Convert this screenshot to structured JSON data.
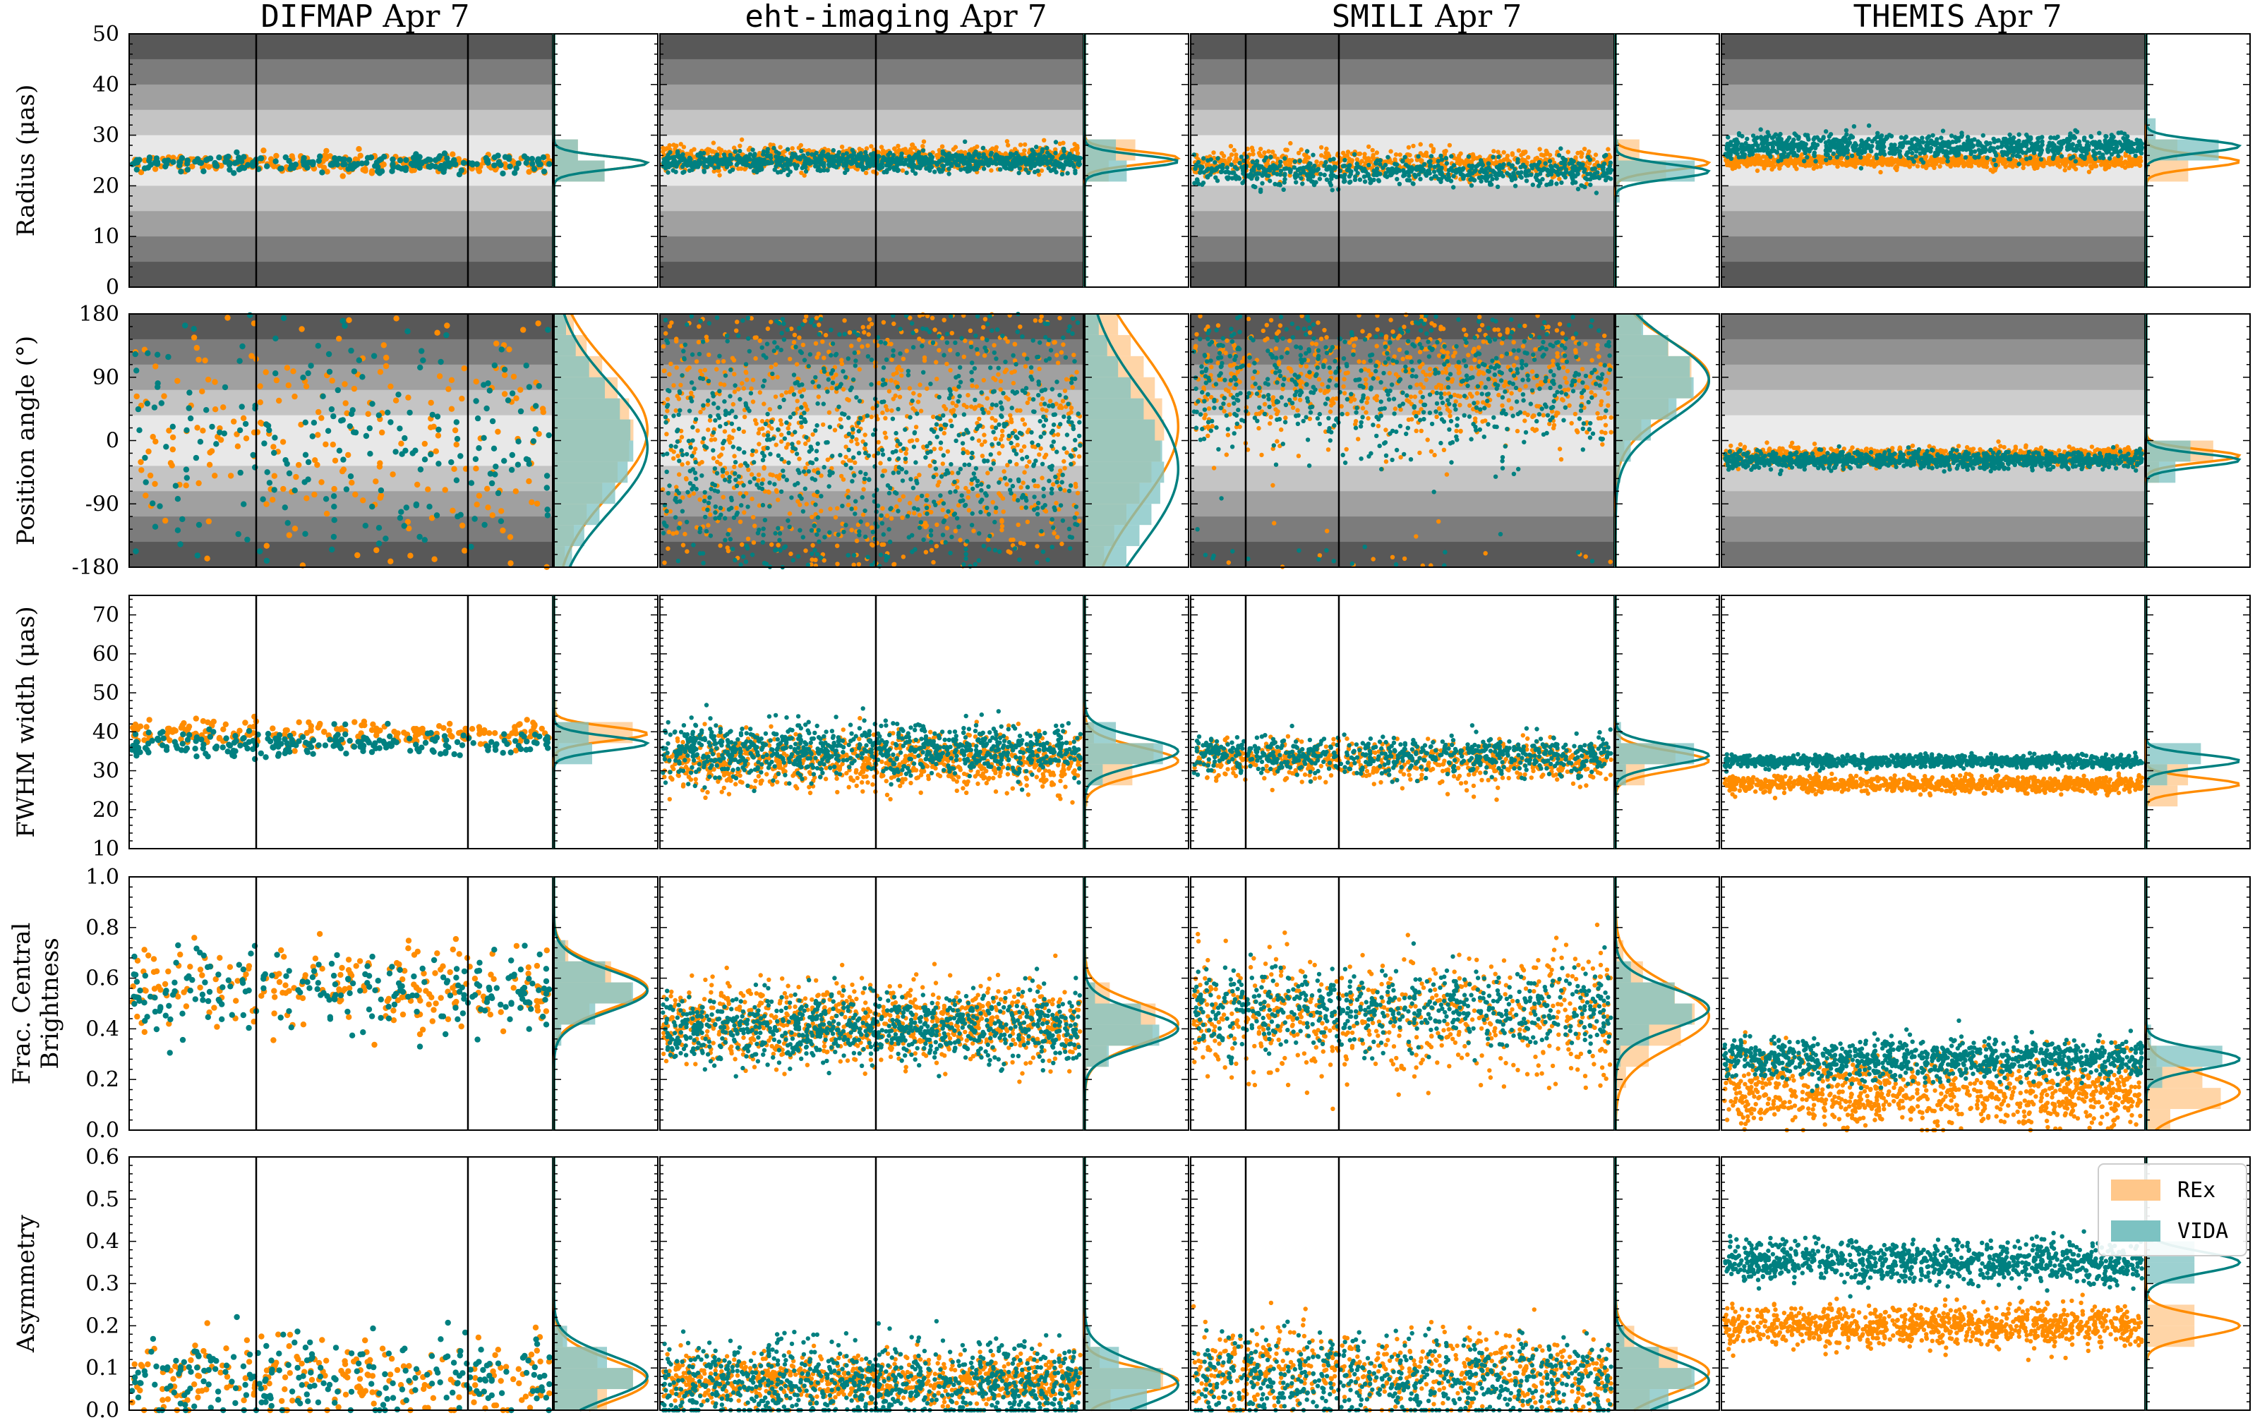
{
  "chart_data": {
    "type": "scatter",
    "layout": "grid of 5 rows x 4 columns; each cell = scatter (time-ordered) + marginal histogram with KDE",
    "columns": [
      {
        "method": "DIFMAP",
        "date": "Apr 7",
        "dividers": [
          0.3,
          0.8
        ]
      },
      {
        "method": "eht-imaging",
        "date": "Apr 7",
        "dividers": [
          0.51
        ]
      },
      {
        "method": "SMILI",
        "date": "Apr 7",
        "dividers": [
          0.13,
          0.35
        ]
      },
      {
        "method": "THEMIS",
        "date": "Apr 7",
        "dividers": []
      }
    ],
    "rows": [
      {
        "key": "radius",
        "ylabel": "Radius (μas)",
        "ylim": [
          0,
          50
        ],
        "yticks": [
          0,
          10,
          20,
          30,
          40,
          50
        ],
        "grayscale_background": true,
        "means": {
          "REx": [
            24.5,
            25.5,
            24.5,
            24.8
          ],
          "VIDA": [
            24.5,
            24.8,
            22.8,
            27.8
          ]
        },
        "spreads": {
          "REx": [
            1.0,
            1.2,
            1.4,
            0.6
          ],
          "VIDA": [
            0.8,
            1.0,
            1.4,
            1.2
          ]
        }
      },
      {
        "key": "pa",
        "ylabel": "Position angle (°)",
        "ylim": [
          -180,
          180
        ],
        "yticks": [
          -180,
          -90,
          0,
          90,
          180
        ],
        "grayscale_background": true,
        "means": {
          "REx": [
            15,
            20,
            90,
            -22
          ],
          "VIDA": [
            -10,
            -40,
            85,
            -28
          ]
        },
        "spreads": {
          "REx": [
            90,
            110,
            50,
            6
          ],
          "VIDA": [
            90,
            110,
            55,
            6
          ]
        }
      },
      {
        "key": "fwhm",
        "ylabel": "FWHM width (μas)",
        "ylim": [
          10,
          75
        ],
        "yticks": [
          10,
          20,
          30,
          40,
          50,
          60,
          70
        ],
        "grayscale_background": false,
        "means": {
          "REx": [
            39.5,
            32.5,
            32.5,
            26.5
          ],
          "VIDA": [
            37,
            35,
            34,
            32.5
          ]
        },
        "spreads": {
          "REx": [
            1.8,
            3.5,
            2.5,
            1.0
          ],
          "VIDA": [
            1.8,
            3.5,
            2.5,
            0.8
          ]
        }
      },
      {
        "key": "fcb",
        "ylabel": "Frac. Central Brightness",
        "ylim": [
          0,
          1.0
        ],
        "yticks": [
          0.0,
          0.2,
          0.4,
          0.6,
          0.8,
          1.0
        ],
        "grayscale_background": false,
        "means": {
          "REx": [
            0.56,
            0.42,
            0.45,
            0.15
          ],
          "VIDA": [
            0.55,
            0.4,
            0.48,
            0.28
          ]
        },
        "spreads": {
          "REx": [
            0.08,
            0.08,
            0.12,
            0.07
          ],
          "VIDA": [
            0.08,
            0.07,
            0.08,
            0.04
          ]
        }
      },
      {
        "key": "asym",
        "ylabel": "Asymmetry",
        "ylim": [
          0,
          0.6
        ],
        "yticks": [
          0.0,
          0.1,
          0.2,
          0.3,
          0.4,
          0.5,
          0.6
        ],
        "grayscale_background": false,
        "means": {
          "REx": [
            0.07,
            0.07,
            0.09,
            0.2
          ],
          "VIDA": [
            0.08,
            0.06,
            0.07,
            0.35
          ]
        },
        "spreads": {
          "REx": [
            0.05,
            0.03,
            0.05,
            0.025
          ],
          "VIDA": [
            0.05,
            0.05,
            0.05,
            0.025
          ]
        }
      }
    ],
    "points_per_panel": [
      220,
      900,
      650,
      950
    ],
    "series": [
      {
        "name": "REx",
        "color": "#ff8c00",
        "hist_color": "#ffc78a"
      },
      {
        "name": "VIDA",
        "color": "#008080",
        "hist_color": "#7cc2c2"
      }
    ],
    "legend": {
      "position": "bottom-right",
      "entries": [
        "REx",
        "VIDA"
      ]
    }
  }
}
